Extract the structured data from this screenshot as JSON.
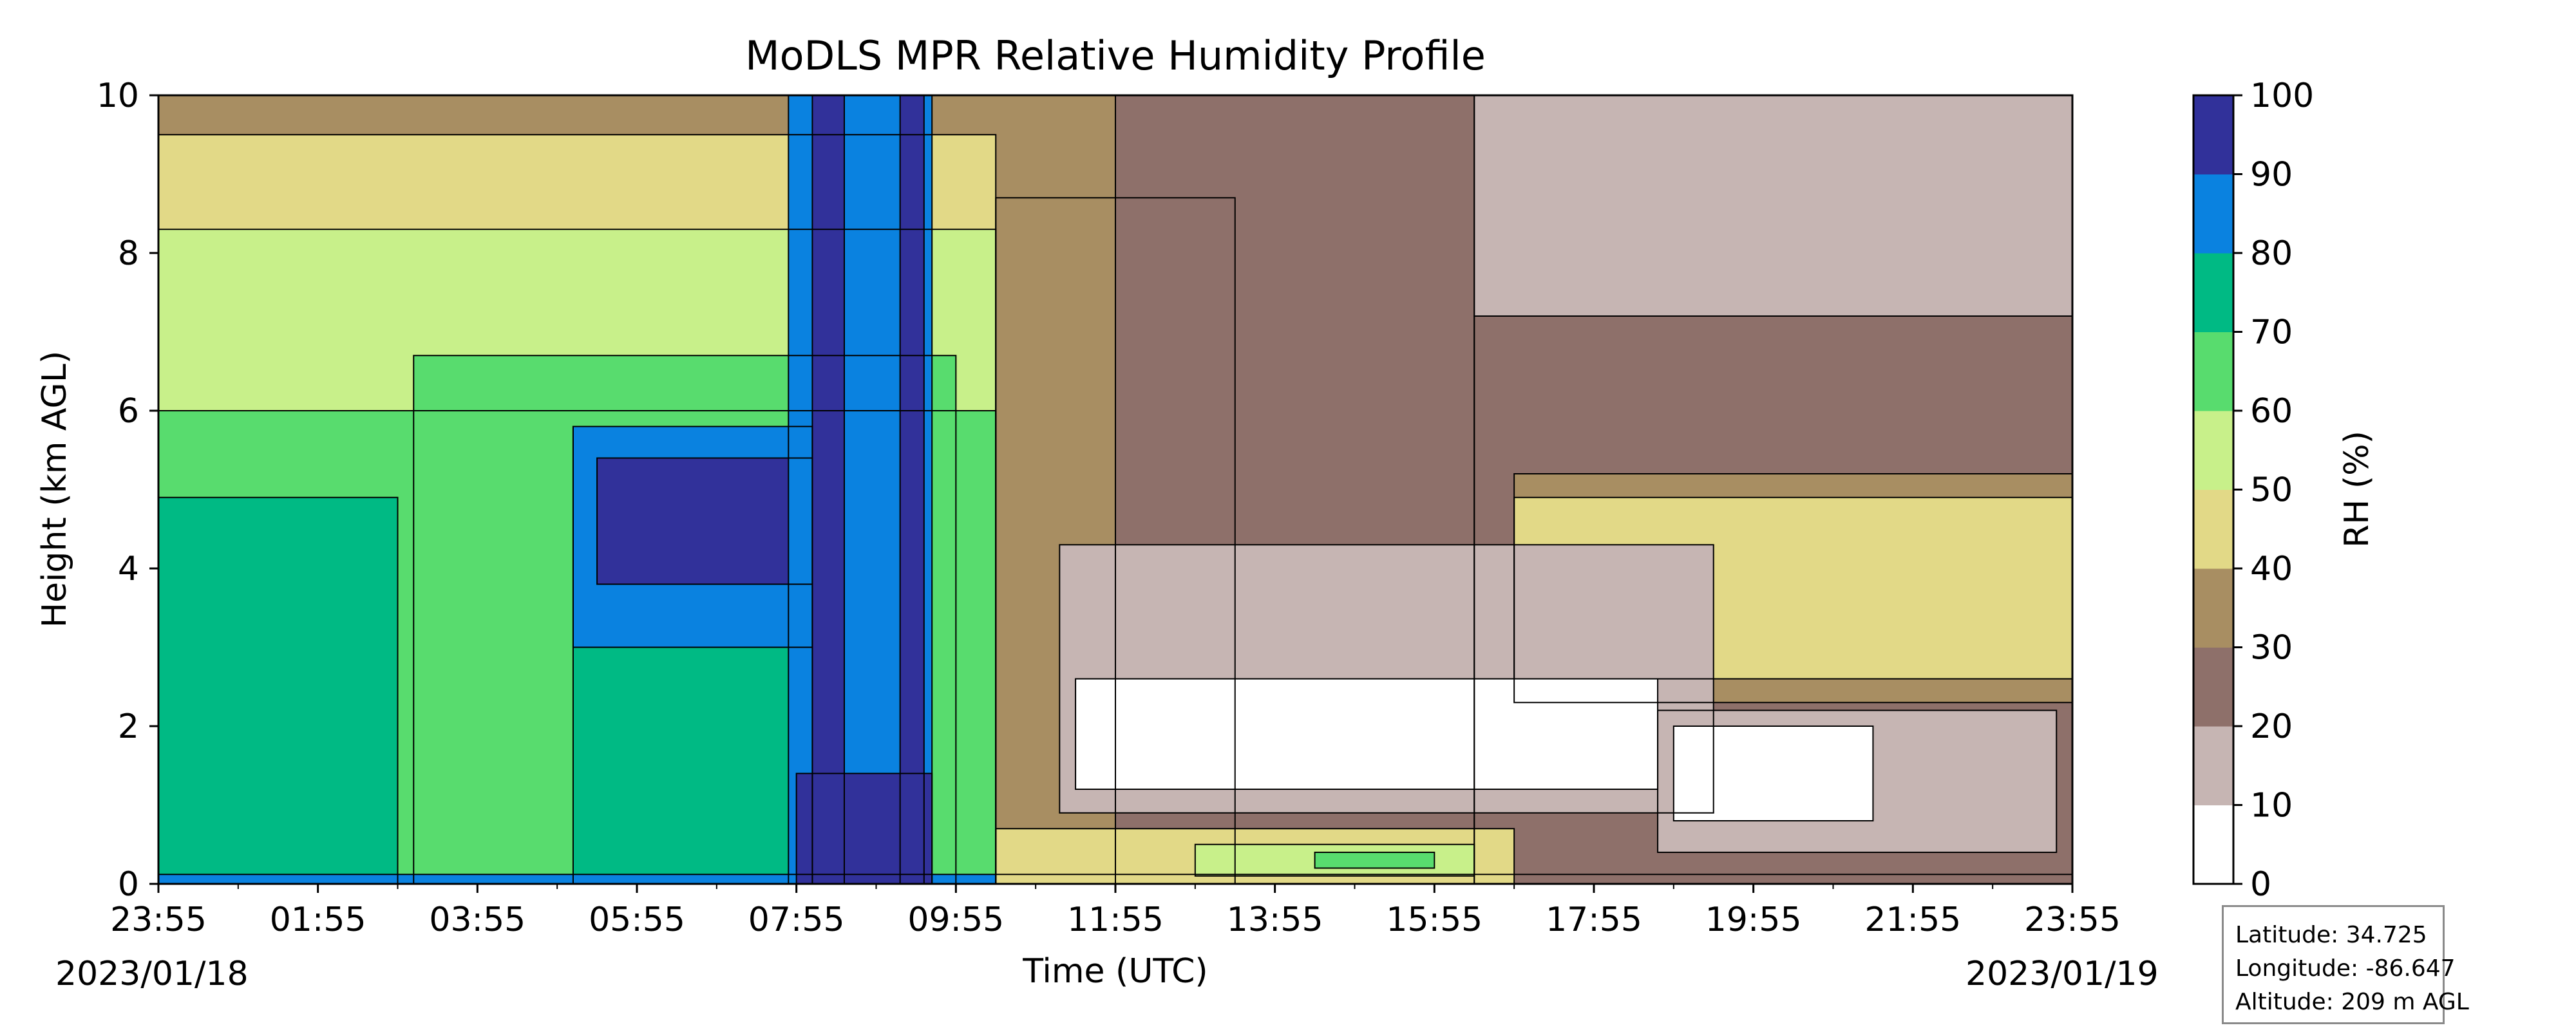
{
  "chart_data": {
    "type": "heatmap",
    "title": "MoDLS MPR Relative Humidity Profile",
    "xlabel": "Time (UTC)",
    "ylabel": "Height (km AGL)",
    "x_tick_labels": [
      "23:55",
      "01:55",
      "03:55",
      "05:55",
      "07:55",
      "09:55",
      "11:55",
      "13:55",
      "15:55",
      "17:55",
      "19:55",
      "21:55",
      "23:55"
    ],
    "x_tick_hours": [
      0,
      2,
      4,
      6,
      8,
      10,
      12,
      14,
      16,
      18,
      20,
      22,
      24
    ],
    "start_date_label": "2023/01/18",
    "end_date_label": "2023/01/19",
    "y_ticks": [
      0,
      2,
      4,
      6,
      8,
      10
    ],
    "ylim": [
      0,
      10
    ],
    "xlim_hours": [
      0,
      24
    ],
    "colorbar": {
      "label": "RH (%)",
      "levels": [
        0,
        10,
        20,
        30,
        40,
        50,
        60,
        70,
        80,
        90,
        100
      ],
      "colors": [
        "#ffffff",
        "#c6b5b3",
        "#8e706a",
        "#a88e62",
        "#e2d987",
        "#c8f08a",
        "#58dc6e",
        "#00ba84",
        "#0a82e0",
        "#31319a"
      ]
    },
    "field_description": "filled contour of RH vs time (hours since 23:55) and height (km)",
    "regions": [
      {
        "t": [
          0,
          24
        ],
        "h": [
          0,
          10
        ],
        "rh": 30
      },
      {
        "t": [
          0,
          10.5
        ],
        "h": [
          0,
          9.5
        ],
        "rh": 45
      },
      {
        "t": [
          0,
          10.5
        ],
        "h": [
          0,
          8.3
        ],
        "rh": 55
      },
      {
        "t": [
          0,
          10.5
        ],
        "h": [
          0,
          6.0
        ],
        "rh": 65
      },
      {
        "t": [
          0,
          3.0
        ],
        "h": [
          0,
          4.9
        ],
        "rh": 75
      },
      {
        "t": [
          3.2,
          10.0
        ],
        "h": [
          0,
          6.7
        ],
        "rh": 65
      },
      {
        "t": [
          5.2,
          8.2
        ],
        "h": [
          0,
          5.8
        ],
        "rh": 75
      },
      {
        "t": [
          5.2,
          8.2
        ],
        "h": [
          3.0,
          5.8
        ],
        "rh": 85
      },
      {
        "t": [
          5.5,
          8.2
        ],
        "h": [
          3.8,
          5.4
        ],
        "rh": 95
      },
      {
        "t": [
          7.9,
          9.7
        ],
        "h": [
          0,
          10
        ],
        "rh": 85
      },
      {
        "t": [
          8.2,
          8.6
        ],
        "h": [
          0,
          10
        ],
        "rh": 95
      },
      {
        "t": [
          9.3,
          9.6
        ],
        "h": [
          0,
          10
        ],
        "rh": 95
      },
      {
        "t": [
          0,
          24
        ],
        "h": [
          0,
          0.12
        ],
        "rh": 85
      },
      {
        "t": [
          8.0,
          9.7
        ],
        "h": [
          0,
          1.4
        ],
        "rh": 95
      },
      {
        "t": [
          10.5,
          13.5
        ],
        "h": [
          0,
          8.7
        ],
        "rh": 35
      },
      {
        "t": [
          12.0,
          16.5
        ],
        "h": [
          0,
          10
        ],
        "rh": 25
      },
      {
        "t": [
          16.5,
          24
        ],
        "h": [
          7.2,
          10
        ],
        "rh": 15
      },
      {
        "t": [
          16.5,
          24
        ],
        "h": [
          0,
          7.2
        ],
        "rh": 25
      },
      {
        "t": [
          17.0,
          24
        ],
        "h": [
          2.3,
          5.2
        ],
        "rh": 35
      },
      {
        "t": [
          17.0,
          24
        ],
        "h": [
          2.6,
          4.9
        ],
        "rh": 45
      },
      {
        "t": [
          11.3,
          19.5
        ],
        "h": [
          0.9,
          4.3
        ],
        "rh": 15
      },
      {
        "t": [
          11.5,
          18.8
        ],
        "h": [
          1.2,
          2.6
        ],
        "rh": 5
      },
      {
        "t": [
          18.8,
          23.8
        ],
        "h": [
          0.4,
          2.2
        ],
        "rh": 15
      },
      {
        "t": [
          19.0,
          21.5
        ],
        "h": [
          0.8,
          2.0
        ],
        "rh": 5
      },
      {
        "t": [
          10.5,
          17.0
        ],
        "h": [
          0,
          0.7
        ],
        "rh": 45
      },
      {
        "t": [
          13.0,
          16.5
        ],
        "h": [
          0.1,
          0.5
        ],
        "rh": 55
      },
      {
        "t": [
          14.5,
          16.0
        ],
        "h": [
          0.2,
          0.4
        ],
        "rh": 65
      }
    ]
  },
  "info_box": {
    "latitude": "Latitude: 34.725",
    "longitude": "Longitude: -86.647",
    "altitude": "Altitude: 209 m AGL"
  }
}
